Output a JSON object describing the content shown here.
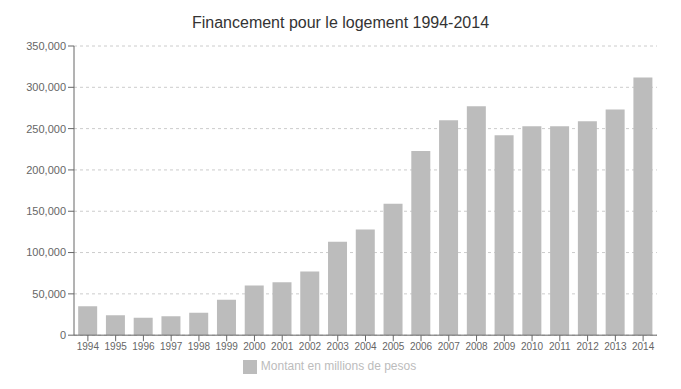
{
  "chart_data": {
    "type": "bar",
    "title": "Financement pour le logement 1994-2014",
    "categories": [
      "1994",
      "1995",
      "1996",
      "1997",
      "1998",
      "1999",
      "2000",
      "2001",
      "2002",
      "2003",
      "2004",
      "2005",
      "2006",
      "2007",
      "2008",
      "2009",
      "2010",
      "2011",
      "2012",
      "2013",
      "2014"
    ],
    "series": [
      {
        "name": "Montant en millions de pesos",
        "color": "#bcbcbc",
        "values": [
          35000,
          24000,
          21000,
          23000,
          27000,
          43000,
          60000,
          64000,
          77000,
          113000,
          128000,
          159000,
          223000,
          260000,
          277000,
          242000,
          253000,
          253000,
          259000,
          273000,
          312000
        ]
      }
    ],
    "ylim": [
      0,
      350000
    ],
    "yticks": [
      0,
      {
        "value": 50000,
        "label": "50,000"
      },
      {
        "value": 100000,
        "label": "100,000"
      },
      {
        "value": 150000,
        "label": "150,000"
      },
      {
        "value": 200000,
        "label": "200,000"
      },
      {
        "value": 250000,
        "label": "250,000"
      },
      {
        "value": 300000,
        "label": "300,000"
      },
      {
        "value": 350000,
        "label": "350,000"
      }
    ],
    "grid": true,
    "legend": "bottom"
  }
}
